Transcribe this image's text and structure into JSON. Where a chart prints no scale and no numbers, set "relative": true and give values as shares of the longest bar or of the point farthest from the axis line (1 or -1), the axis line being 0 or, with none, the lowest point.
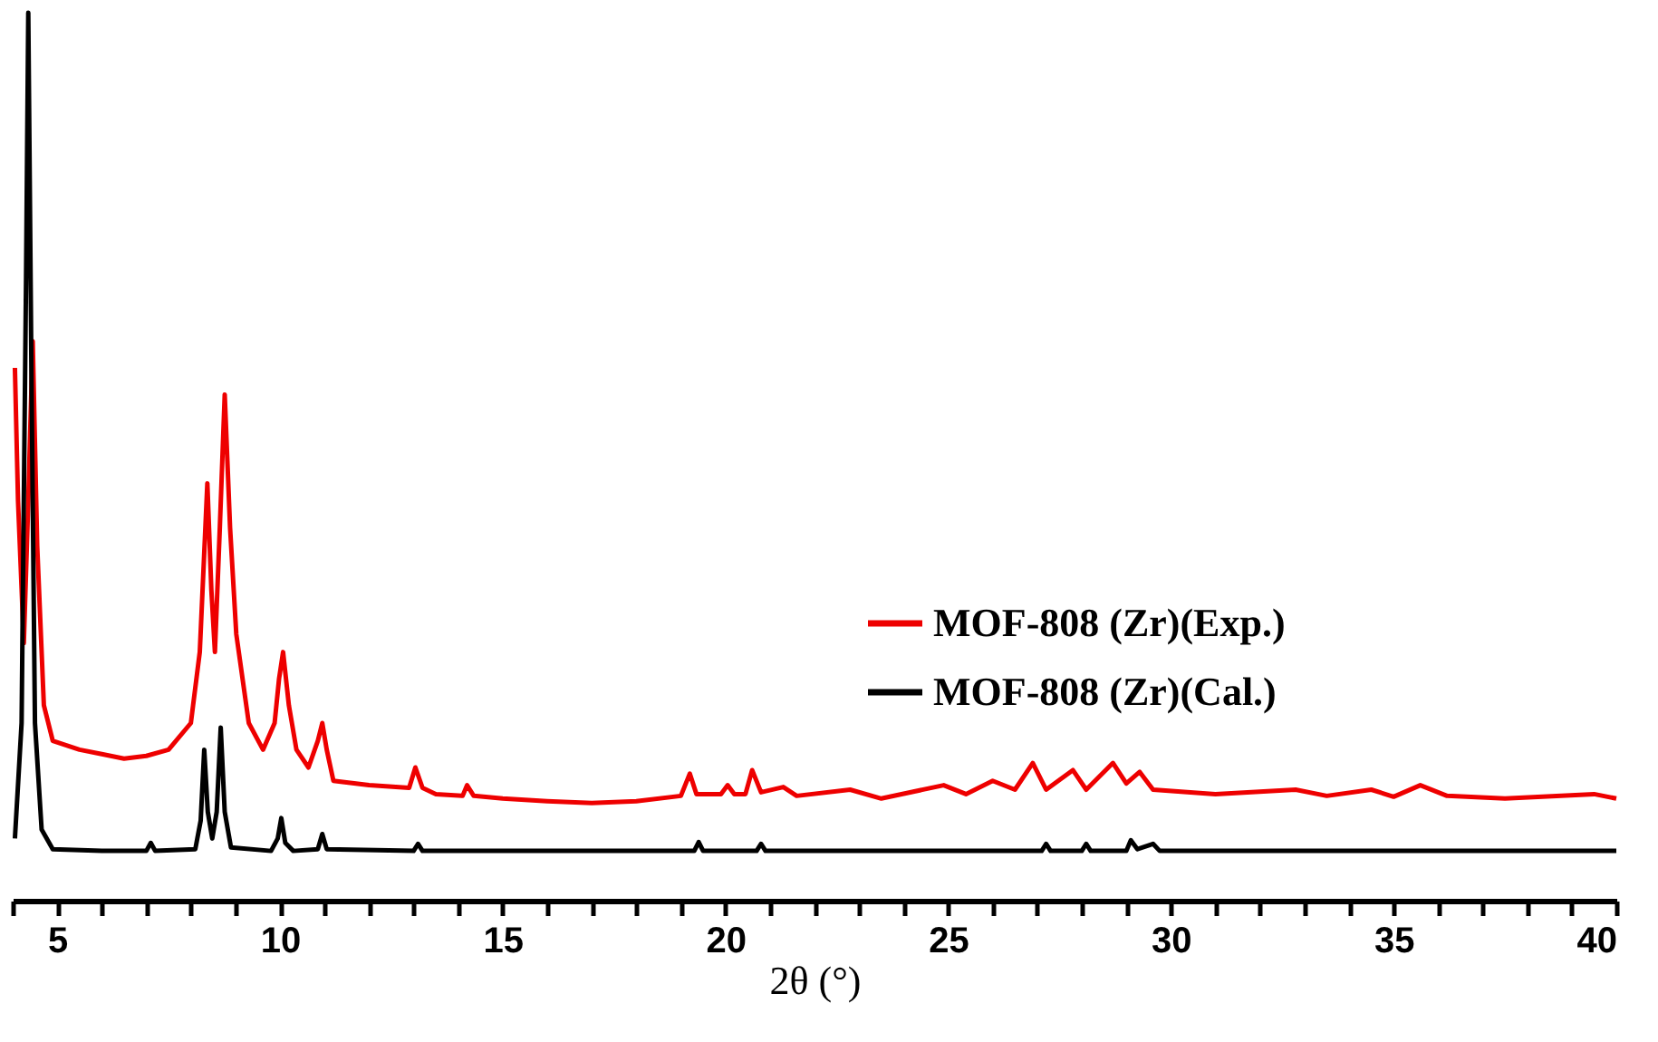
{
  "chart_data": {
    "type": "line",
    "xlabel": "2θ (°)",
    "relative": true,
    "tick_labels": "x",
    "grid": false,
    "legend": "right",
    "marker": "none",
    "line_style": "solid",
    "xlim": [
      4,
      40
    ],
    "xticks": [
      {
        "value": 4,
        "label": null
      },
      5,
      {
        "value": 6,
        "label": null
      },
      {
        "value": 7,
        "label": null
      },
      {
        "value": 8,
        "label": null
      },
      {
        "value": 9,
        "label": null
      },
      10,
      {
        "value": 11,
        "label": null
      },
      {
        "value": 12,
        "label": null
      },
      {
        "value": 13,
        "label": null
      },
      {
        "value": 14,
        "label": null
      },
      15,
      {
        "value": 16,
        "label": null
      },
      {
        "value": 17,
        "label": null
      },
      {
        "value": 18,
        "label": null
      },
      {
        "value": 19,
        "label": null
      },
      20,
      {
        "value": 21,
        "label": null
      },
      {
        "value": 22,
        "label": null
      },
      {
        "value": 23,
        "label": null
      },
      {
        "value": 24,
        "label": null
      },
      25,
      {
        "value": 26,
        "label": null
      },
      {
        "value": 27,
        "label": null
      },
      {
        "value": 28,
        "label": null
      },
      {
        "value": 29,
        "label": null
      },
      30,
      {
        "value": 31,
        "label": null
      },
      {
        "value": 32,
        "label": null
      },
      {
        "value": 33,
        "label": null
      },
      {
        "value": 34,
        "label": null
      },
      35,
      {
        "value": 36,
        "label": null
      },
      {
        "value": 37,
        "label": null
      },
      {
        "value": 38,
        "label": null
      },
      {
        "value": 39,
        "label": null
      },
      40
    ],
    "series": [
      {
        "name": "MOF-808 (Zr)(Exp.)",
        "color": "#ee0000",
        "x": [
          4.05,
          4.12,
          4.25,
          4.35,
          4.45,
          4.55,
          4.7,
          4.9,
          5.5,
          6.0,
          6.5,
          7.0,
          7.5,
          8.0,
          8.2,
          8.37,
          8.46,
          8.54,
          8.65,
          8.76,
          8.88,
          9.02,
          9.3,
          9.62,
          9.88,
          9.98,
          10.07,
          10.2,
          10.37,
          10.64,
          10.85,
          10.95,
          11.05,
          11.2,
          12.0,
          12.9,
          13.04,
          13.2,
          13.5,
          14.1,
          14.2,
          14.35,
          15,
          16,
          17,
          18,
          19,
          19.2,
          19.35,
          19.9,
          20.05,
          20.2,
          20.45,
          20.6,
          20.8,
          21.3,
          21.6,
          22.8,
          23.5,
          24.9,
          25.4,
          26.0,
          26.5,
          26.9,
          27.2,
          27.8,
          28.1,
          28.7,
          29.0,
          29.3,
          29.6,
          31,
          32.8,
          33.5,
          34.5,
          35,
          35.6,
          36.2,
          37.5,
          39.5,
          40
        ],
        "values": [
          0.6,
          0.45,
          0.29,
          0.45,
          0.63,
          0.4,
          0.22,
          0.18,
          0.17,
          0.165,
          0.16,
          0.163,
          0.17,
          0.2,
          0.28,
          0.47,
          0.35,
          0.28,
          0.42,
          0.57,
          0.42,
          0.3,
          0.2,
          0.17,
          0.2,
          0.25,
          0.28,
          0.22,
          0.17,
          0.15,
          0.18,
          0.2,
          0.17,
          0.135,
          0.13,
          0.127,
          0.15,
          0.127,
          0.12,
          0.118,
          0.13,
          0.118,
          0.115,
          0.112,
          0.11,
          0.112,
          0.118,
          0.143,
          0.12,
          0.12,
          0.13,
          0.12,
          0.12,
          0.147,
          0.122,
          0.128,
          0.118,
          0.125,
          0.115,
          0.13,
          0.12,
          0.135,
          0.125,
          0.155,
          0.125,
          0.147,
          0.125,
          0.155,
          0.132,
          0.145,
          0.125,
          0.12,
          0.125,
          0.118,
          0.125,
          0.117,
          0.13,
          0.118,
          0.115,
          0.12,
          0.115
        ]
      },
      {
        "name": "MOF-808 (Zr)(Cal.)",
        "color": "#000000",
        "x": [
          4.05,
          4.2,
          4.3,
          4.35,
          4.42,
          4.5,
          4.65,
          4.9,
          6,
          7.0,
          7.1,
          7.2,
          8.1,
          8.22,
          8.3,
          8.38,
          8.48,
          8.58,
          8.67,
          8.76,
          8.9,
          9.8,
          9.95,
          10.03,
          10.12,
          10.3,
          10.85,
          10.95,
          11.05,
          13.0,
          13.1,
          13.2,
          19.3,
          19.4,
          19.5,
          20.7,
          20.8,
          20.9,
          27.1,
          27.2,
          27.3,
          28.0,
          28.1,
          28.2,
          29.0,
          29.1,
          29.25,
          29.6,
          29.75,
          40
        ],
        "values": [
          0.07,
          0.2,
          0.7,
          1.0,
          0.6,
          0.2,
          0.08,
          0.058,
          0.056,
          0.056,
          0.065,
          0.056,
          0.058,
          0.09,
          0.17,
          0.1,
          0.07,
          0.1,
          0.195,
          0.1,
          0.06,
          0.056,
          0.07,
          0.093,
          0.065,
          0.056,
          0.058,
          0.075,
          0.058,
          0.056,
          0.064,
          0.056,
          0.056,
          0.066,
          0.056,
          0.056,
          0.064,
          0.056,
          0.056,
          0.064,
          0.056,
          0.056,
          0.064,
          0.056,
          0.056,
          0.068,
          0.058,
          0.064,
          0.056,
          0.056
        ]
      }
    ]
  }
}
